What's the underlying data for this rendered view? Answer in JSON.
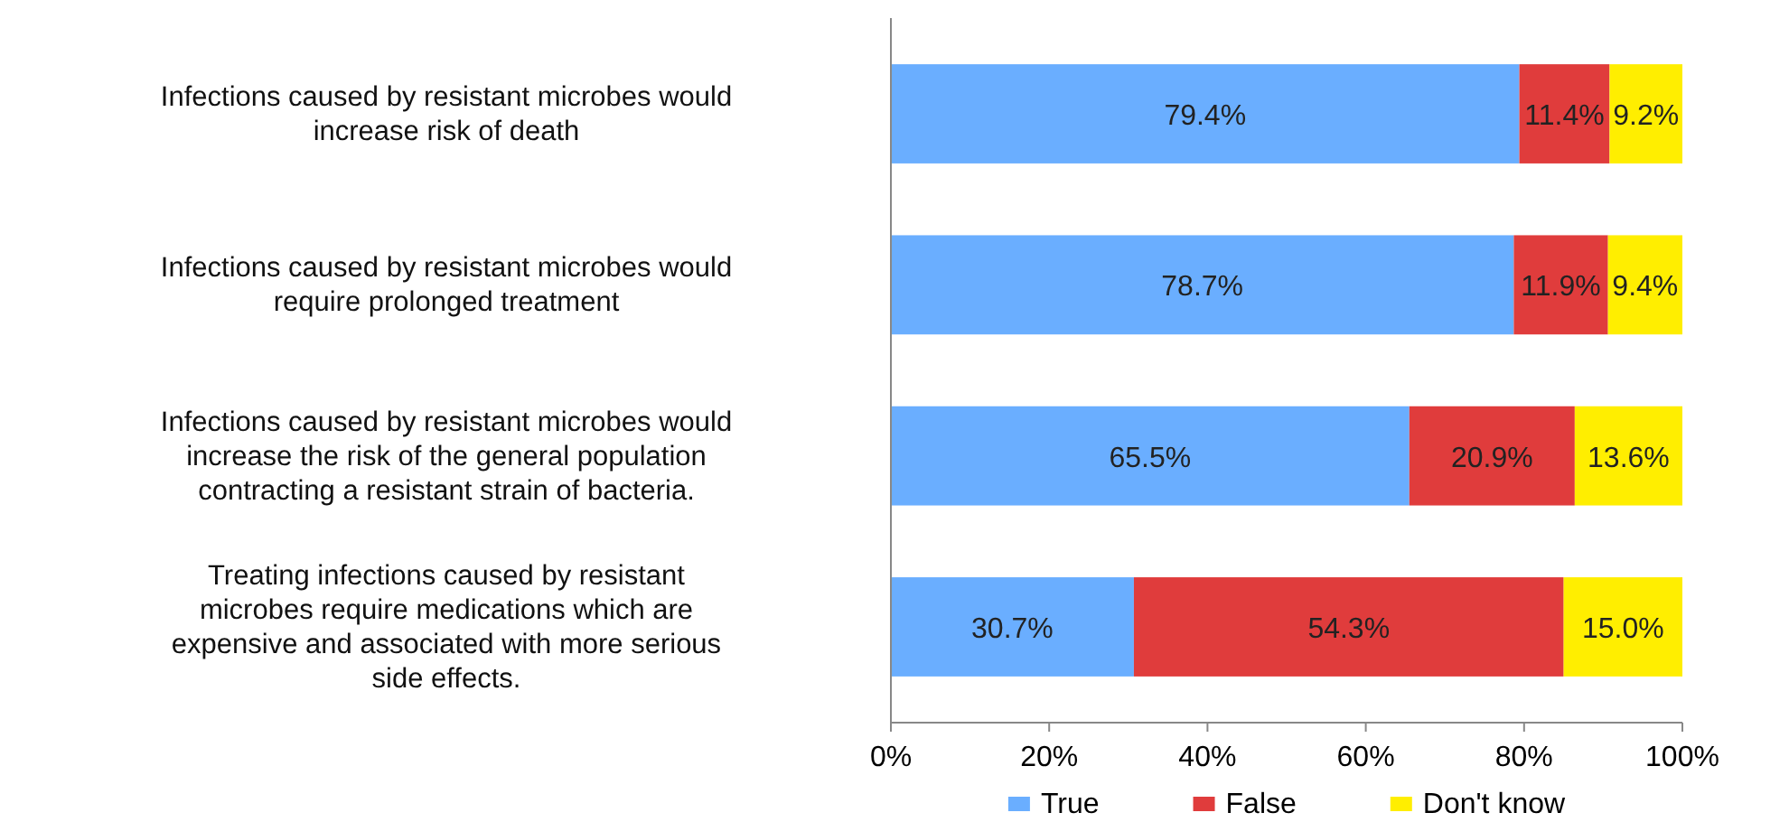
{
  "chart_data": {
    "type": "bar",
    "orientation": "horizontal",
    "stacked": true,
    "categories": [
      "Infections caused by resistant microbes would\nincrease risk of death",
      "Infections caused by resistant microbes would\nrequire prolonged treatment",
      "Infections caused by resistant microbes would\nincrease the risk of the general population\ncontracting a resistant strain of bacteria.",
      "Treating infections caused by resistant\nmicrobes require medications which are\nexpensive and associated with more serious\nside effects."
    ],
    "series": [
      {
        "name": "True",
        "color": "#6aaeff",
        "values": [
          79.4,
          78.7,
          65.5,
          30.7
        ],
        "value_labels": [
          "79.4%",
          "78.7%",
          "65.5%",
          "30.7%"
        ]
      },
      {
        "name": "False",
        "color": "#e03c3c",
        "values": [
          11.4,
          11.9,
          20.9,
          54.3
        ],
        "value_labels": [
          "11.4%",
          "11.9%",
          "20.9%",
          "54.3%"
        ]
      },
      {
        "name": "Don't know",
        "color": "#ffee00",
        "values": [
          9.2,
          9.4,
          13.6,
          15.0
        ],
        "value_labels": [
          "9.2%",
          "9.4%",
          "13.6%",
          "15.0%"
        ]
      }
    ],
    "xlim": [
      0,
      100
    ],
    "xticks": [
      {
        "value": 0,
        "label": "0%"
      },
      {
        "value": 20,
        "label": "20%"
      },
      {
        "value": 40,
        "label": "40%"
      },
      {
        "value": 60,
        "label": "60%"
      },
      {
        "value": 80,
        "label": "80%"
      },
      {
        "value": 100,
        "label": "100%"
      }
    ],
    "legend": "bottom"
  }
}
